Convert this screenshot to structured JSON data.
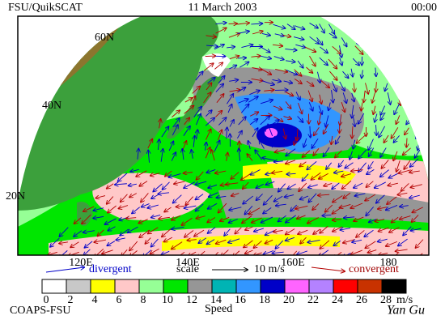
{
  "header": {
    "left": "FSU/QuikSCAT",
    "center": "11 March 2003",
    "right": "00:00"
  },
  "map": {
    "lat_labels": [
      "60N",
      "40N",
      "20N"
    ],
    "lon_labels": [
      "120E",
      "140E",
      "160E",
      "180"
    ]
  },
  "legend": {
    "divergent": "divergent",
    "scale": "scale",
    "scale_value": "10 m/s",
    "convergent": "convergent"
  },
  "colorbar": {
    "labels": [
      "0",
      "2",
      "4",
      "6",
      "8",
      "10",
      "12",
      "14",
      "16",
      "18",
      "20",
      "22",
      "24",
      "26",
      "28"
    ],
    "colors": [
      "#ffffff",
      "#c8c8c8",
      "#ffff00",
      "#ffc8c8",
      "#96ff96",
      "#00e600",
      "#969696",
      "#00b4b4",
      "#3296ff",
      "#0000c8",
      "#ff64ff",
      "#b482ff",
      "#ff0000",
      "#c83200",
      "#000000"
    ],
    "unit": "m/s",
    "title": "Speed"
  },
  "footer": {
    "left": "COAPS-FSU",
    "signature": "Yan Gu"
  }
}
